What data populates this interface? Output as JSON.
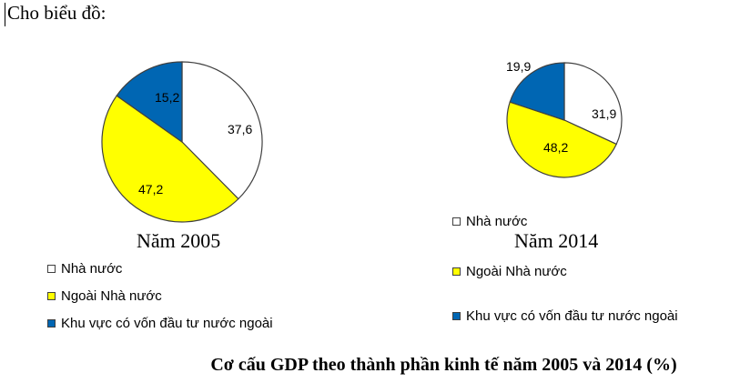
{
  "intro": "Cho biểu đồ:",
  "caption": "Cơ cấu GDP theo thành phần kinh tế năm 2005 và 2014 (%)",
  "colors": {
    "state": "#ffffff",
    "non_state": "#ffff00",
    "fdi": "#0066b3",
    "outline": "#404040"
  },
  "legend": [
    "Nhà nước",
    "Ngoài Nhà nước",
    "Khu vực có vốn đầu tư nước ngoài"
  ],
  "chart_data": [
    {
      "type": "pie",
      "title": "Năm 2005",
      "labels": [
        "Nhà nước",
        "Ngoài Nhà nước",
        "Khu vực có vốn đầu tư nước ngoài"
      ],
      "values": [
        37.6,
        47.2,
        15.2
      ],
      "value_labels": [
        "37,6",
        "47,2",
        "15,2"
      ],
      "legend_position": "bottom-left"
    },
    {
      "type": "pie",
      "title": "Năm 2014",
      "labels": [
        "Nhà nước",
        "Ngoài Nhà nước",
        "Khu vực có vốn đầu tư nước ngoài"
      ],
      "values": [
        31.9,
        48.2,
        19.9
      ],
      "value_labels": [
        "31,9",
        "48,2",
        "19,9"
      ],
      "legend_position": "bottom"
    }
  ]
}
